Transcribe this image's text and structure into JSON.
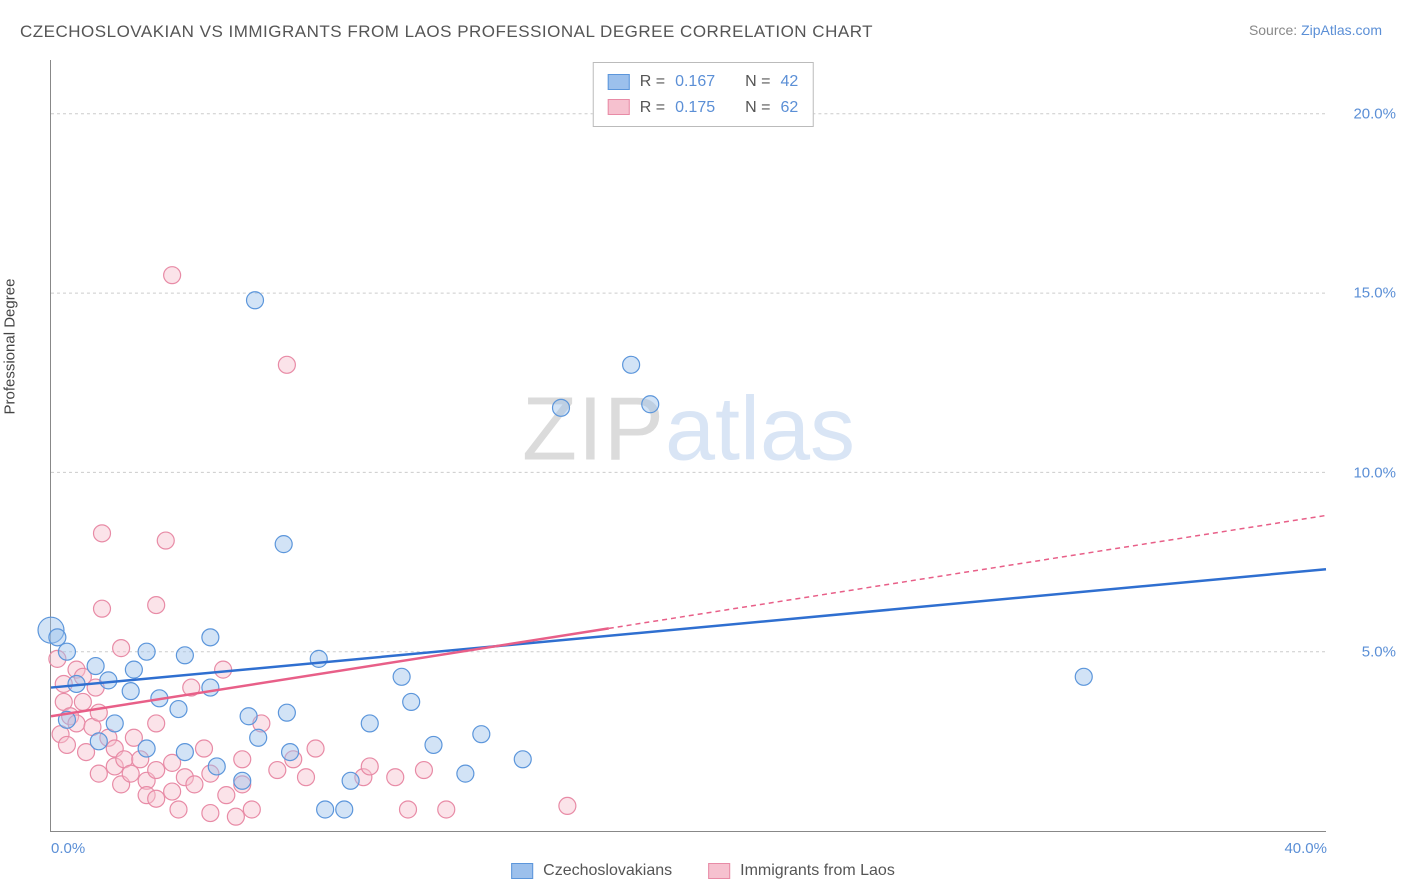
{
  "title": "CZECHOSLOVAKIAN VS IMMIGRANTS FROM LAOS PROFESSIONAL DEGREE CORRELATION CHART",
  "source_label": "Source:",
  "source_name": "ZipAtlas.com",
  "y_axis_label": "Professional Degree",
  "watermark": {
    "part1": "ZIP",
    "part2": "atlas"
  },
  "chart": {
    "type": "scatter",
    "background_color": "#ffffff",
    "grid_color": "#cccccc",
    "axis_color": "#888888",
    "xlim": [
      0,
      40
    ],
    "ylim": [
      0,
      21.5
    ],
    "x_ticks": [
      {
        "value": 0,
        "label": "0.0%"
      },
      {
        "value": 40,
        "label": "40.0%"
      }
    ],
    "y_ticks": [
      {
        "value": 5,
        "label": "5.0%"
      },
      {
        "value": 10,
        "label": "10.0%"
      },
      {
        "value": 15,
        "label": "15.0%"
      },
      {
        "value": 20,
        "label": "20.0%"
      }
    ],
    "tick_label_color": "#5b8fd6",
    "tick_label_fontsize": 15,
    "point_radius": 8.5,
    "series": [
      {
        "name": "Czechoslovakians",
        "fill_color": "#9cc0ec",
        "stroke_color": "#5c96db",
        "line_color": "#2f6fd0",
        "R": "0.167",
        "N": "42",
        "trend": {
          "x1": 0,
          "y1": 4.0,
          "x2": 40,
          "y2": 7.3,
          "solid_until_x": 40
        },
        "points": [
          [
            0.0,
            5.6,
            13
          ],
          [
            0.2,
            5.4
          ],
          [
            5.0,
            5.4
          ],
          [
            3.0,
            5.0
          ],
          [
            4.2,
            4.9
          ],
          [
            6.4,
            14.8
          ],
          [
            7.3,
            8.0
          ],
          [
            5.0,
            4.0
          ],
          [
            4.0,
            3.4
          ],
          [
            6.2,
            3.2
          ],
          [
            6.5,
            2.6
          ],
          [
            7.4,
            3.3
          ],
          [
            7.5,
            2.2
          ],
          [
            5.2,
            1.8
          ],
          [
            6.0,
            1.4
          ],
          [
            8.6,
            0.6
          ],
          [
            9.2,
            0.6
          ],
          [
            9.4,
            1.4
          ],
          [
            8.4,
            4.8
          ],
          [
            11.0,
            4.3
          ],
          [
            11.3,
            3.6
          ],
          [
            12.0,
            2.4
          ],
          [
            13.0,
            1.6
          ],
          [
            10.0,
            3.0
          ],
          [
            16.0,
            11.8
          ],
          [
            18.8,
            11.9
          ],
          [
            13.5,
            2.7
          ],
          [
            14.8,
            2.0
          ],
          [
            18.2,
            13.0
          ],
          [
            32.4,
            4.3
          ],
          [
            1.4,
            4.6
          ],
          [
            1.8,
            4.2
          ],
          [
            2.5,
            3.9
          ],
          [
            3.4,
            3.7
          ],
          [
            2.0,
            3.0
          ],
          [
            1.5,
            2.5
          ],
          [
            0.8,
            4.1
          ],
          [
            0.5,
            3.1
          ],
          [
            3.0,
            2.3
          ],
          [
            4.2,
            2.2
          ],
          [
            2.6,
            4.5
          ],
          [
            0.5,
            5.0
          ]
        ]
      },
      {
        "name": "Immigrants from Laos",
        "fill_color": "#f6c1cf",
        "stroke_color": "#e88ba6",
        "line_color": "#e85f88",
        "R": "0.175",
        "N": "62",
        "trend": {
          "x1": 0,
          "y1": 3.2,
          "x2": 40,
          "y2": 8.8,
          "solid_until_x": 17.5
        },
        "points": [
          [
            3.8,
            15.5
          ],
          [
            7.4,
            13.0
          ],
          [
            1.6,
            8.3
          ],
          [
            3.6,
            8.1
          ],
          [
            1.6,
            6.2
          ],
          [
            3.3,
            6.3
          ],
          [
            2.2,
            5.1
          ],
          [
            0.4,
            4.1
          ],
          [
            0.4,
            3.6
          ],
          [
            0.6,
            3.2
          ],
          [
            0.8,
            4.5
          ],
          [
            0.8,
            3.0
          ],
          [
            1.0,
            4.3
          ],
          [
            1.0,
            3.6
          ],
          [
            1.3,
            2.9
          ],
          [
            1.4,
            4.0
          ],
          [
            1.5,
            3.3
          ],
          [
            1.5,
            1.6
          ],
          [
            1.8,
            2.6
          ],
          [
            2.0,
            2.3
          ],
          [
            2.0,
            1.8
          ],
          [
            2.2,
            1.3
          ],
          [
            2.3,
            2.0
          ],
          [
            2.5,
            1.6
          ],
          [
            2.6,
            2.6
          ],
          [
            2.8,
            2.0
          ],
          [
            3.0,
            1.4
          ],
          [
            3.0,
            1.0
          ],
          [
            3.3,
            3.0
          ],
          [
            3.3,
            1.7
          ],
          [
            3.3,
            0.9
          ],
          [
            3.8,
            1.9
          ],
          [
            3.8,
            1.1
          ],
          [
            4.2,
            1.5
          ],
          [
            4.4,
            4.0
          ],
          [
            4.5,
            1.3
          ],
          [
            4.8,
            2.3
          ],
          [
            5.0,
            1.6
          ],
          [
            5.0,
            0.5
          ],
          [
            5.4,
            4.5
          ],
          [
            5.5,
            1.0
          ],
          [
            5.8,
            0.4
          ],
          [
            6.0,
            2.0
          ],
          [
            6.0,
            1.3
          ],
          [
            6.3,
            0.6
          ],
          [
            6.6,
            3.0
          ],
          [
            7.1,
            1.7
          ],
          [
            7.6,
            2.0
          ],
          [
            8.0,
            1.5
          ],
          [
            8.3,
            2.3
          ],
          [
            4.0,
            0.6
          ],
          [
            9.8,
            1.5
          ],
          [
            10.0,
            1.8
          ],
          [
            10.8,
            1.5
          ],
          [
            11.2,
            0.6
          ],
          [
            11.7,
            1.7
          ],
          [
            12.4,
            0.6
          ],
          [
            16.2,
            0.7
          ],
          [
            0.2,
            4.8
          ],
          [
            0.3,
            2.7
          ],
          [
            0.5,
            2.4
          ],
          [
            1.1,
            2.2
          ]
        ]
      }
    ]
  },
  "stats_box": {
    "R_label": "R =",
    "N_label": "N ="
  },
  "bottom_legend": [
    {
      "label": "Czechoslovakians",
      "series_index": 0
    },
    {
      "label": "Immigrants from Laos",
      "series_index": 1
    }
  ]
}
